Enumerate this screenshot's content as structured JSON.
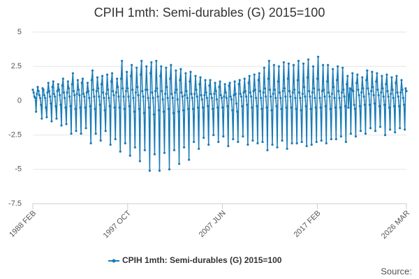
{
  "chart_data": {
    "type": "line",
    "title": "CPIH 1mth: Semi-durables (G) 2015=100",
    "source_label": "Source:",
    "categories": [
      "1988 FEB",
      null,
      null,
      null,
      null,
      null,
      null,
      null,
      null,
      null,
      null,
      null,
      null,
      null,
      null,
      null,
      null,
      null,
      null,
      null,
      null,
      null,
      null,
      null,
      null,
      null,
      null,
      null,
      null,
      null,
      null,
      null,
      null,
      null,
      null,
      null,
      null,
      null,
      null,
      null,
      null,
      null,
      null,
      null,
      null,
      null,
      null,
      null,
      null,
      null,
      null,
      null,
      null,
      null,
      null,
      null,
      null,
      null,
      null,
      null,
      null,
      null,
      null,
      null,
      null,
      null,
      null,
      null,
      null,
      null,
      null,
      null,
      null,
      null,
      null,
      null,
      null,
      null,
      null,
      null,
      null,
      null,
      null,
      null,
      null,
      null,
      null,
      null,
      null,
      null,
      null,
      null,
      null,
      null,
      null,
      null,
      null,
      null,
      null,
      null,
      null,
      null,
      null,
      null,
      null,
      null,
      null,
      null,
      null,
      null,
      null,
      null,
      null,
      null,
      null,
      null,
      "1997 OCT",
      null,
      null,
      null,
      null,
      null,
      null,
      null,
      null,
      null,
      null,
      null,
      null,
      null,
      null,
      null,
      null,
      null,
      null,
      null,
      null,
      null,
      null,
      null,
      null,
      null,
      null,
      null,
      null,
      null,
      null,
      null,
      null,
      null,
      null,
      null,
      null,
      null,
      null,
      null,
      null,
      null,
      null,
      null,
      null,
      null,
      null,
      null,
      null,
      null,
      null,
      null,
      null,
      null,
      null,
      null,
      null,
      null,
      null,
      null,
      null,
      null,
      null,
      null,
      null,
      null,
      null,
      null,
      null,
      null,
      null,
      null,
      null,
      null,
      null,
      null,
      null,
      null,
      null,
      null,
      null,
      null,
      null,
      null,
      null,
      null,
      null,
      null,
      null,
      null,
      null,
      null,
      null,
      null,
      null,
      null,
      null,
      null,
      null,
      null,
      null,
      null,
      null,
      null,
      null,
      null,
      null,
      null,
      null,
      null,
      null,
      null,
      null,
      null,
      null,
      null,
      "2007 JUN",
      null,
      null,
      null,
      null,
      null,
      null,
      null,
      null,
      null,
      null,
      null,
      null,
      null,
      null,
      null,
      null,
      null,
      null,
      null,
      null,
      null,
      null,
      null,
      null,
      null,
      null,
      null,
      null,
      null,
      null,
      null,
      null,
      null,
      null,
      null,
      null,
      null,
      null,
      null,
      null,
      null,
      null,
      null,
      null,
      null,
      null,
      null,
      null,
      null,
      null,
      null,
      null,
      null,
      null,
      null,
      null,
      null,
      null,
      null,
      null,
      null,
      null,
      null,
      null,
      null,
      null,
      null,
      null,
      null,
      null,
      null,
      null,
      null,
      null,
      null,
      null,
      null,
      null,
      null,
      null,
      null,
      null,
      null,
      null,
      null,
      null,
      null,
      null,
      null,
      null,
      null,
      null,
      null,
      null,
      null,
      null,
      null,
      null,
      null,
      null,
      null,
      null,
      null,
      null,
      null,
      null,
      null,
      null,
      null,
      null,
      null,
      null,
      null,
      null,
      null,
      "2017 FEB",
      null,
      null,
      null,
      null,
      null,
      null,
      null,
      null,
      null,
      null,
      null,
      null,
      null,
      null,
      null,
      null,
      null,
      null,
      null,
      null,
      null,
      null,
      null,
      null,
      null,
      null,
      null,
      null,
      null,
      null,
      null,
      null,
      null,
      null,
      null,
      null,
      null,
      null,
      null,
      null,
      null,
      null,
      null,
      null,
      null,
      null,
      null,
      null,
      null,
      null,
      null,
      null,
      null,
      null,
      null,
      null,
      null,
      null,
      null,
      null,
      null,
      null,
      null,
      null,
      null,
      null,
      null,
      null,
      null,
      null,
      null,
      null,
      null,
      null,
      null,
      null,
      null,
      null,
      null,
      null,
      null,
      null,
      null,
      null,
      null,
      null,
      null,
      null,
      null,
      null,
      null,
      null,
      null,
      null,
      null,
      null,
      null,
      null,
      null,
      null,
      null,
      null,
      null,
      null,
      null,
      null,
      null,
      null,
      "2026 MAR"
    ],
    "series": [
      {
        "name": "CPIH 1mth: Semi-durables (G) 2015=100",
        "color": "#1a7bb6",
        "values": [
          0.8,
          0.6,
          0.3,
          0.2,
          -0.8,
          0.5,
          1.0,
          0.7,
          0.4,
          0.2,
          -0.3,
          -1.3,
          0.9,
          0.8,
          0.4,
          0.2,
          -0.5,
          -1.2,
          0.6,
          1.3,
          0.7,
          0.3,
          -0.2,
          -1.5,
          1.0,
          1.4,
          0.5,
          0.3,
          -0.4,
          -1.3,
          0.7,
          1.2,
          0.8,
          0.4,
          -0.3,
          -1.8,
          1.1,
          1.6,
          0.6,
          0.2,
          -0.5,
          -1.7,
          0.6,
          1.4,
          0.9,
          0.3,
          -0.4,
          -2.4,
          1.2,
          2.0,
          0.7,
          0.4,
          -0.6,
          -2.2,
          0.5,
          1.5,
          0.8,
          0.4,
          -0.5,
          -2.4,
          1.3,
          1.6,
          0.5,
          0.3,
          -0.5,
          -2.0,
          0.6,
          1.3,
          0.7,
          0.2,
          -0.4,
          -3.1,
          1.5,
          2.2,
          0.8,
          0.3,
          -0.6,
          -2.4,
          0.7,
          1.7,
          0.9,
          0.3,
          -0.3,
          -2.9,
          1.2,
          1.8,
          0.6,
          0.2,
          -0.7,
          -2.2,
          0.5,
          1.9,
          0.8,
          0.2,
          -0.4,
          -3.2,
          1.4,
          2.0,
          0.7,
          0.4,
          -0.5,
          -2.8,
          0.6,
          1.6,
          1.0,
          0.3,
          -0.5,
          -3.7,
          1.6,
          2.9,
          0.9,
          0.3,
          -0.6,
          -3.1,
          0.7,
          2.1,
          0.9,
          0.3,
          -0.4,
          -4.0,
          1.8,
          2.6,
          0.8,
          0.2,
          -0.8,
          -3.4,
          0.6,
          2.4,
          1.0,
          0.4,
          -0.6,
          -4.4,
          1.9,
          2.9,
          0.7,
          0.3,
          -0.9,
          -3.6,
          0.8,
          2.5,
          0.8,
          0.2,
          -0.5,
          -5.1,
          2.0,
          2.8,
          0.6,
          0.2,
          -1.0,
          -3.9,
          0.7,
          2.9,
          0.9,
          0.3,
          -0.7,
          -5.1,
          1.8,
          2.5,
          0.7,
          0.1,
          -0.8,
          -3.8,
          0.5,
          2.4,
          1.0,
          0.2,
          -0.6,
          -5.0,
          1.6,
          2.6,
          0.5,
          0.2,
          -0.9,
          -3.6,
          0.6,
          2.2,
          0.8,
          0.1,
          -0.8,
          -4.6,
          1.5,
          2.3,
          0.6,
          0.3,
          -0.7,
          -3.4,
          0.4,
          2.0,
          0.7,
          0.2,
          -0.6,
          -4.3,
          1.4,
          2.1,
          0.5,
          0.2,
          -0.6,
          -3.0,
          0.5,
          1.8,
          0.8,
          0.3,
          -0.5,
          -3.5,
          1.2,
          1.7,
          0.4,
          0.1,
          -0.5,
          -2.7,
          0.4,
          1.5,
          0.6,
          0.2,
          -0.4,
          -3.2,
          1.1,
          1.5,
          0.5,
          0.2,
          -0.6,
          -2.5,
          0.5,
          1.3,
          0.7,
          0.1,
          -0.5,
          -3.0,
          1.0,
          1.4,
          0.4,
          0.2,
          -0.5,
          -2.6,
          0.3,
          1.2,
          0.6,
          0.2,
          -0.4,
          -3.3,
          1.1,
          1.3,
          0.3,
          0.1,
          -0.7,
          -2.8,
          0.4,
          1.4,
          0.5,
          -0.2,
          -0.8,
          -3.0,
          1.2,
          1.5,
          0.5,
          0.3,
          -0.4,
          -2.6,
          0.6,
          1.6,
          0.7,
          0.3,
          -0.3,
          -3.2,
          1.3,
          1.8,
          0.6,
          0.3,
          -0.5,
          -2.9,
          0.7,
          1.9,
          0.8,
          0.2,
          -0.4,
          -3.1,
          1.5,
          2.0,
          0.7,
          0.2,
          -0.6,
          -3.0,
          0.6,
          2.4,
          0.9,
          0.3,
          -0.5,
          -3.6,
          1.6,
          2.9,
          0.8,
          0.3,
          -0.7,
          -3.2,
          0.5,
          2.6,
          0.8,
          0.2,
          -0.4,
          -3.4,
          1.4,
          2.5,
          0.6,
          0.2,
          -0.6,
          -2.9,
          0.7,
          2.8,
          0.9,
          0.3,
          -0.5,
          -3.5,
          1.6,
          2.7,
          0.7,
          0.3,
          -0.5,
          -3.1,
          0.6,
          2.6,
          0.8,
          0.2,
          -0.6,
          -3.1,
          1.5,
          2.9,
          0.6,
          0.2,
          -0.7,
          -3.0,
          0.5,
          2.7,
          1.0,
          0.3,
          -0.4,
          -3.3,
          1.7,
          3.0,
          0.7,
          0.3,
          -0.6,
          -3.2,
          0.6,
          2.5,
          0.9,
          0.2,
          -0.5,
          -3.0,
          1.6,
          3.2,
          0.8,
          0.2,
          -0.5,
          -2.9,
          0.7,
          2.6,
          0.8,
          0.3,
          -0.4,
          -3.1,
          1.4,
          2.6,
          0.6,
          0.3,
          -0.6,
          -2.8,
          0.5,
          2.3,
          1.0,
          0.2,
          -0.5,
          -2.8,
          1.5,
          2.5,
          0.7,
          0.2,
          -0.5,
          -2.6,
          0.6,
          2.4,
          0.8,
          0.3,
          -0.4,
          -3.0,
          1.2,
          1.8,
          -0.5,
          0.4,
          0.9,
          -2.4,
          0.8,
          2.0,
          0.7,
          -0.3,
          -0.6,
          -2.6,
          1.3,
          1.9,
          0.8,
          0.4,
          -0.4,
          -2.2,
          0.6,
          1.7,
          0.9,
          0.3,
          -0.3,
          -2.4,
          1.5,
          2.2,
          0.9,
          0.5,
          -0.3,
          -2.0,
          0.7,
          2.1,
          1.0,
          0.4,
          -0.2,
          -2.2,
          1.4,
          2.0,
          0.8,
          0.4,
          -0.4,
          -1.9,
          0.6,
          1.8,
          0.9,
          0.3,
          -0.3,
          -2.5,
          1.2,
          1.9,
          0.7,
          0.3,
          -0.5,
          -2.1,
          0.5,
          1.7,
          0.8,
          0.2,
          -0.4,
          -2.3,
          1.3,
          1.8,
          0.6,
          0.3,
          -0.4,
          -2.0,
          0.6,
          1.5,
          0.8,
          0.2,
          -0.3,
          -2.1,
          0.9,
          0.7
        ]
      }
    ],
    "ylim": [
      -7.5,
      5
    ],
    "yticks": [
      5,
      2.5,
      0,
      -2.5,
      -5,
      -7.5
    ],
    "grid": true
  }
}
